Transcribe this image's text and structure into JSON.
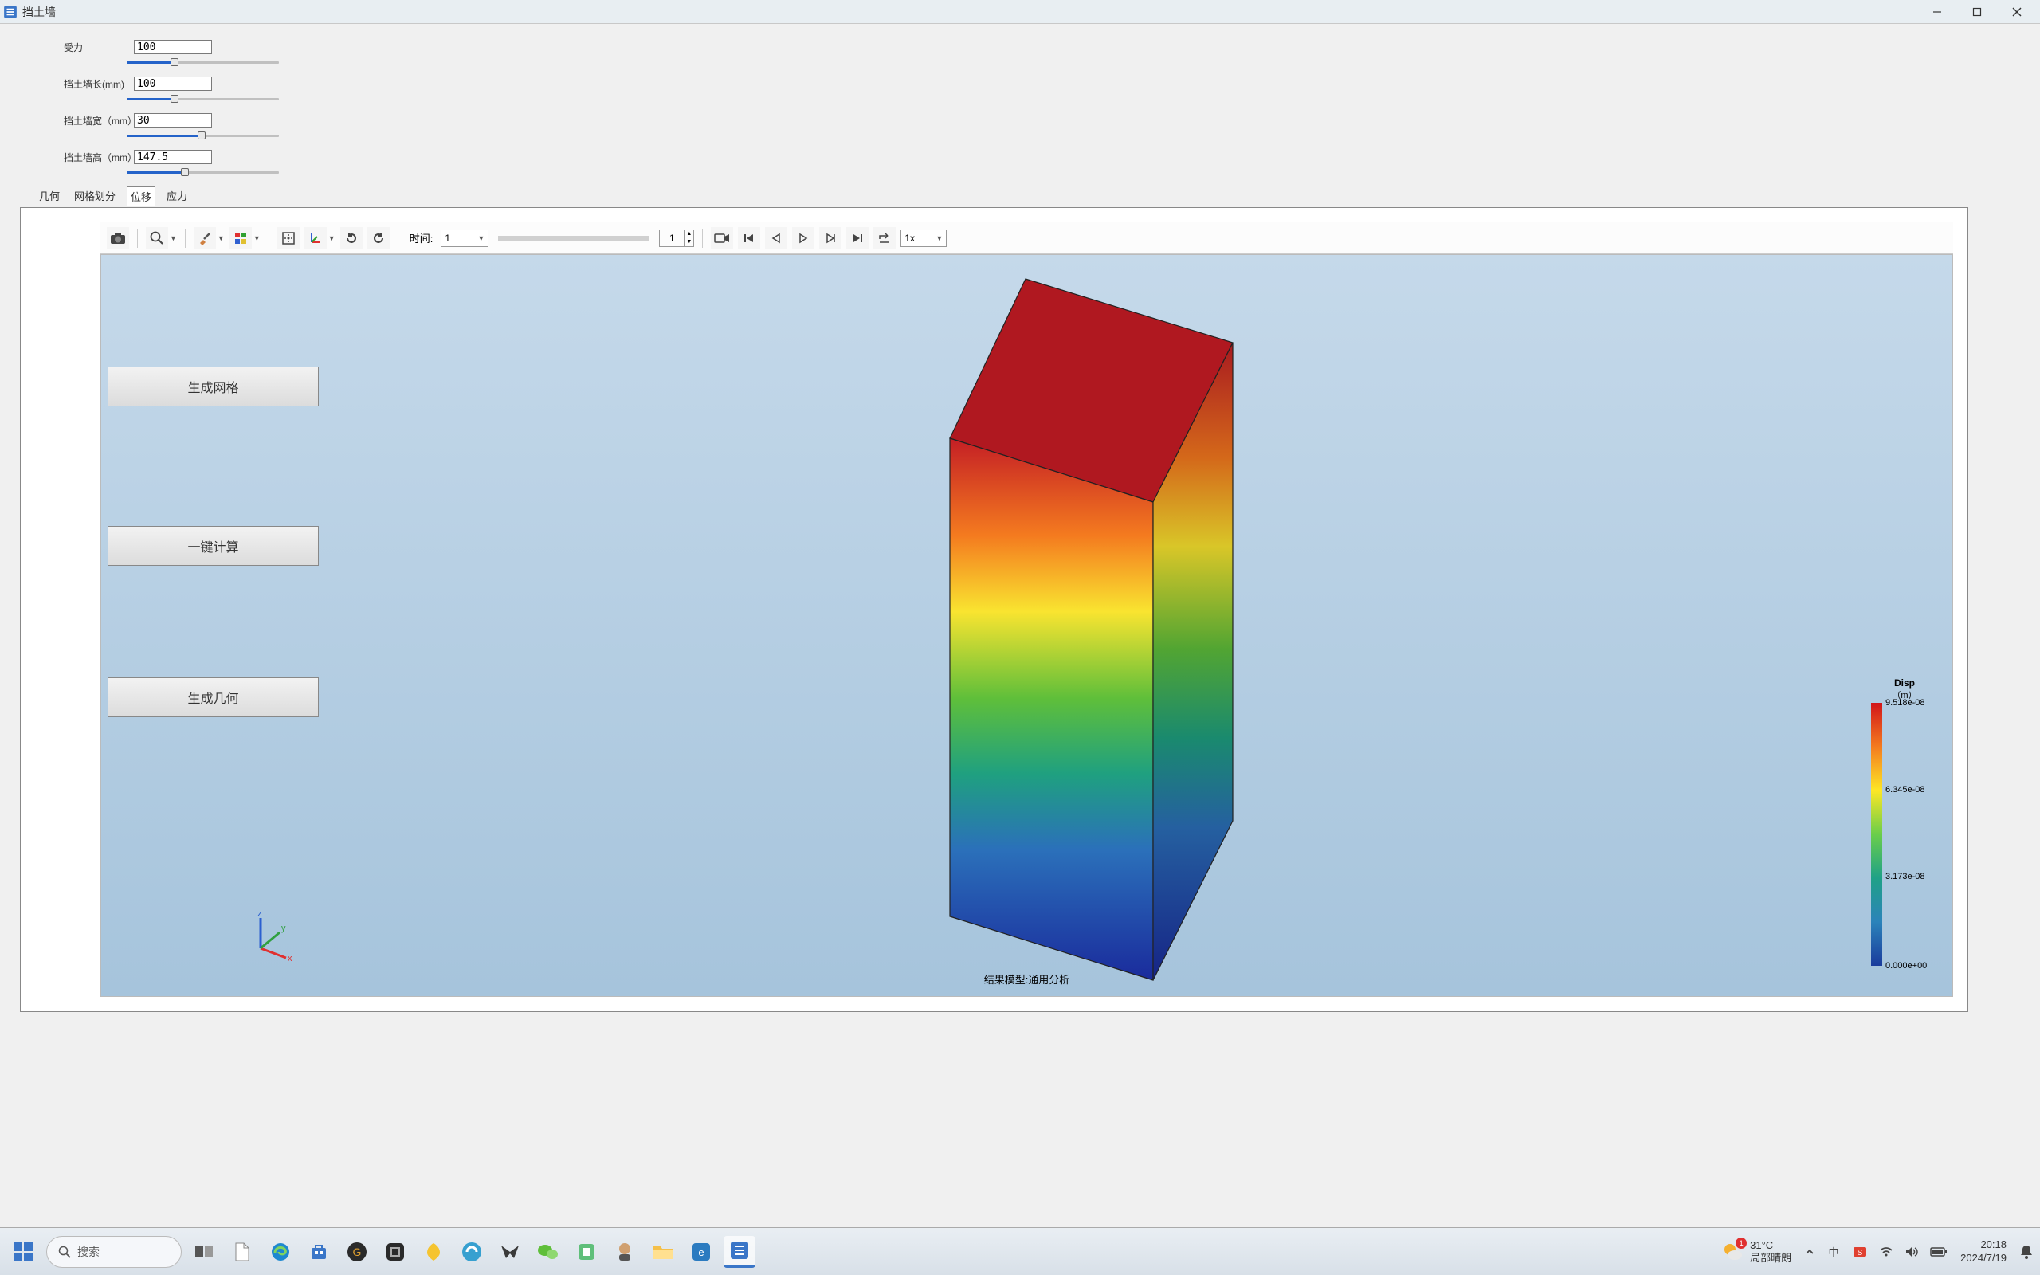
{
  "window": {
    "title": "挡土墙"
  },
  "params": {
    "force": {
      "label": "受力",
      "value": "100",
      "slider_pct": 31
    },
    "length": {
      "label": "挡土墙长(mm)",
      "value": "100",
      "slider_pct": 31
    },
    "width": {
      "label": "挡土墙宽（mm）",
      "value": "30",
      "slider_pct": 49
    },
    "height": {
      "label": "挡土墙高（mm）",
      "value": "147.5",
      "slider_pct": 38
    }
  },
  "tabs": {
    "items": [
      "几何",
      "网格划分",
      "位移",
      "应力"
    ],
    "active_index": 2
  },
  "viewport": {
    "time_label": "时间:",
    "time_value": "1",
    "step_value": "1",
    "speed_value": "1x",
    "actions": {
      "generate_mesh": "生成网格",
      "calculate": "一键计算",
      "generate_geom": "生成几何"
    },
    "caption": "结果模型:通用分析",
    "legend": {
      "title": "Disp",
      "unit": "（m）",
      "labels": [
        "9.518e-08",
        "6.345e-08",
        "3.173e-08",
        "0.000e+00"
      ],
      "label_positions_pct": [
        0,
        33,
        66,
        100
      ]
    },
    "triad": {
      "x": "x",
      "y": "y",
      "z": "z"
    }
  },
  "taskbar": {
    "search_placeholder": "搜索",
    "weather_temp": "31°C",
    "weather_desc": "局部晴朗",
    "notif_count": "1",
    "time": "20:18",
    "date": "2024/7/19"
  },
  "colors": {
    "accent": "#2563c9"
  }
}
